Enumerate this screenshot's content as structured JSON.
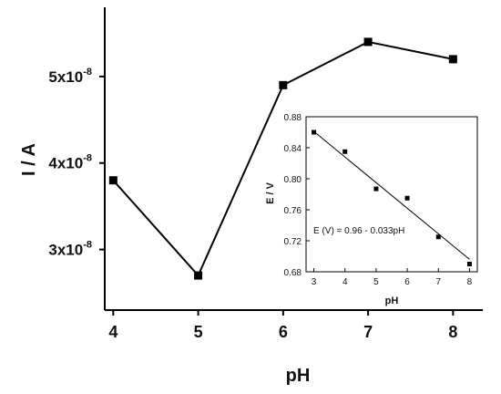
{
  "chart_data": [
    {
      "type": "line",
      "x": [
        4,
        5,
        6,
        7,
        8
      ],
      "series": [
        {
          "values": [
            3.8e-08,
            2.7e-08,
            4.9e-08,
            5.4e-08,
            5.2e-08
          ],
          "marker": "square"
        }
      ],
      "xlabel": "pH",
      "ylabel": "I / A",
      "xlim": [
        3.9,
        8.35
      ],
      "ylim": [
        2.3e-08,
        5.8e-08
      ],
      "xticks": [
        4,
        5,
        6,
        7,
        8
      ],
      "yticks": [
        {
          "value": 3e-08,
          "mantissa": "3x10",
          "exp": "-8"
        },
        {
          "value": 4e-08,
          "mantissa": "4x10",
          "exp": "-8"
        },
        {
          "value": 5e-08,
          "mantissa": "5x10",
          "exp": "-8"
        }
      ],
      "grid": false,
      "color": "#000000"
    },
    {
      "type": "scatter",
      "x": [
        3,
        4,
        5,
        6,
        7,
        8
      ],
      "series": [
        {
          "values": [
            0.86,
            0.835,
            0.787,
            0.775,
            0.725,
            0.69
          ],
          "marker": "square"
        }
      ],
      "fit": {
        "intercept": 0.96,
        "slope": -0.033,
        "label": "E (V) = 0.96 - 0.033pH"
      },
      "xlabel": "pH",
      "ylabel": "E / V",
      "xlim": [
        2.75,
        8.25
      ],
      "ylim": [
        0.68,
        0.88
      ],
      "xticks": [
        "3",
        "4",
        "5",
        "6",
        "7",
        "8"
      ],
      "yticks": [
        "0.68",
        "0.72",
        "0.76",
        "0.80",
        "0.84",
        "0.88"
      ],
      "grid": false,
      "color": "#000000"
    }
  ]
}
